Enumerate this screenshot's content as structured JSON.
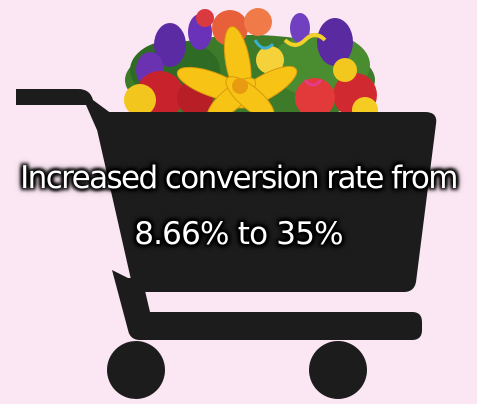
{
  "caption": {
    "line1": "Increased conversion rate from",
    "line2": "8.66% to 35%"
  },
  "colors": {
    "background": "#fbe6f3",
    "cart": "#1c1c1c"
  },
  "icons": {
    "cart": "shopping-cart-icon",
    "flowers": "flower-bouquet-icon"
  }
}
